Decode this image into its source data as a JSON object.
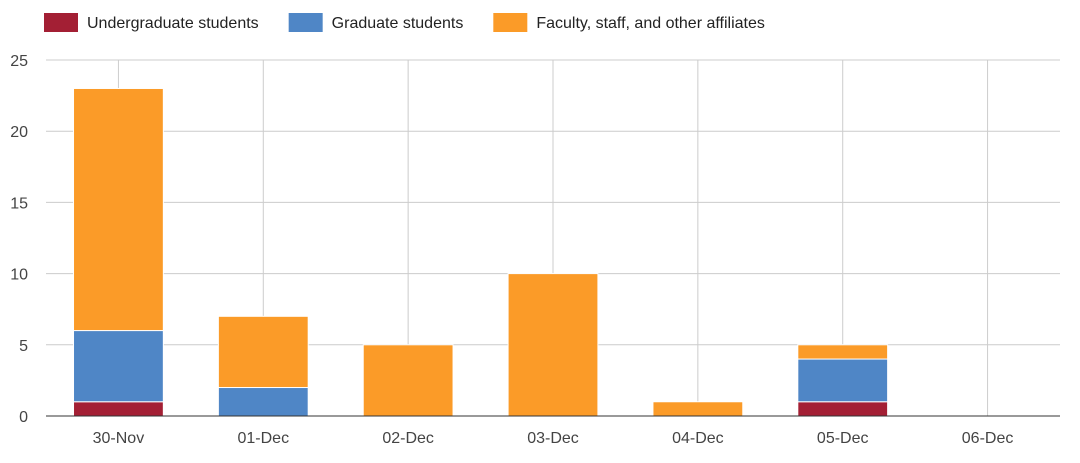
{
  "chart_data": {
    "type": "bar",
    "stacked": true,
    "categories": [
      "30-Nov",
      "01-Dec",
      "02-Dec",
      "03-Dec",
      "04-Dec",
      "05-Dec",
      "06-Dec"
    ],
    "series": [
      {
        "name": "Undergraduate students",
        "color": "#a31f34",
        "values": [
          1,
          0,
          0,
          0,
          0,
          1,
          0
        ]
      },
      {
        "name": "Graduate students",
        "color": "#4f86c6",
        "values": [
          5,
          2,
          0,
          0,
          0,
          3,
          0
        ]
      },
      {
        "name": "Faculty, staff, and other affiliates",
        "color": "#fb9b28",
        "values": [
          17,
          5,
          5,
          10,
          1,
          1,
          0
        ]
      }
    ],
    "ylim": [
      0,
      25
    ],
    "yticks": [
      0,
      5,
      10,
      15,
      20,
      25
    ],
    "grid": true,
    "legend": "top-left"
  }
}
